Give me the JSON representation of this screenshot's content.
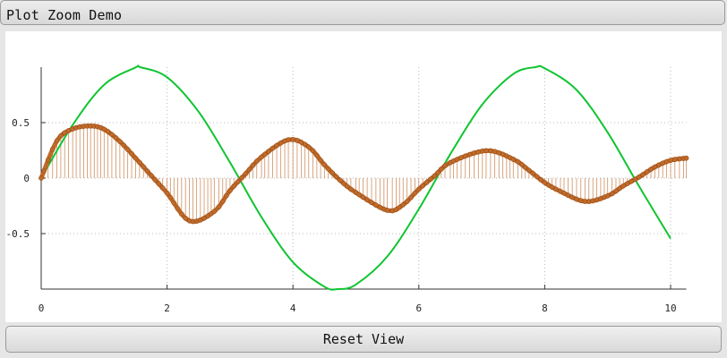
{
  "window": {
    "title": "Plot Zoom Demo"
  },
  "toolbar": {
    "reset_label": "Reset View"
  },
  "colors": {
    "sine": "#11c431",
    "damped": "#c06a2a",
    "stem": "#c06a2a"
  },
  "chart_data": {
    "type": "line",
    "title": "",
    "xlabel": "",
    "ylabel": "",
    "xlim": [
      0,
      10.25
    ],
    "ylim": [
      -1,
      1
    ],
    "x_ticks": [
      "0",
      "2",
      "4",
      "6",
      "8",
      "10"
    ],
    "y_ticks": [
      "-0.5",
      "0",
      "0.5"
    ],
    "grid": "dotted",
    "series": [
      {
        "kind": "line",
        "color": "#11c431",
        "x": [
          0,
          0.5,
          1,
          1.5,
          1.571,
          2,
          2.5,
          3,
          3.5,
          4,
          4.5,
          4.712,
          5,
          5.5,
          6,
          6.5,
          7,
          7.5,
          7.854,
          8,
          8.5,
          9,
          9.5,
          10
        ],
        "y": [
          0,
          0.479,
          0.841,
          0.997,
          1.0,
          0.909,
          0.598,
          0.141,
          -0.351,
          -0.757,
          -0.978,
          -1.0,
          -0.959,
          -0.706,
          -0.279,
          0.215,
          0.657,
          0.938,
          1.0,
          0.989,
          0.798,
          0.412,
          -0.075,
          -0.544
        ]
      },
      {
        "kind": "stem",
        "color": "#c06a2a",
        "x": [
          0,
          0.25,
          0.5,
          0.785,
          1,
          1.25,
          1.5,
          1.75,
          2,
          2.356,
          2.75,
          3,
          3.25,
          3.5,
          3.927,
          4.25,
          4.5,
          4.75,
          5,
          5.498,
          5.75,
          6,
          6.25,
          6.5,
          7.069,
          7.5,
          7.75,
          8,
          8.25,
          8.639,
          9,
          9.25,
          9.5,
          9.75,
          10,
          10.25
        ],
        "y": [
          0,
          0.336,
          0.443,
          0.47,
          0.44,
          0.33,
          0.18,
          0.022,
          -0.135,
          -0.385,
          -0.3,
          -0.112,
          0.04,
          0.19,
          0.345,
          0.28,
          0.12,
          -0.02,
          -0.13,
          -0.29,
          -0.24,
          -0.1,
          0.02,
          0.14,
          0.247,
          0.17,
          0.07,
          -0.04,
          -0.12,
          -0.21,
          -0.16,
          -0.07,
          0.01,
          0.1,
          0.16,
          0.18
        ]
      }
    ]
  }
}
